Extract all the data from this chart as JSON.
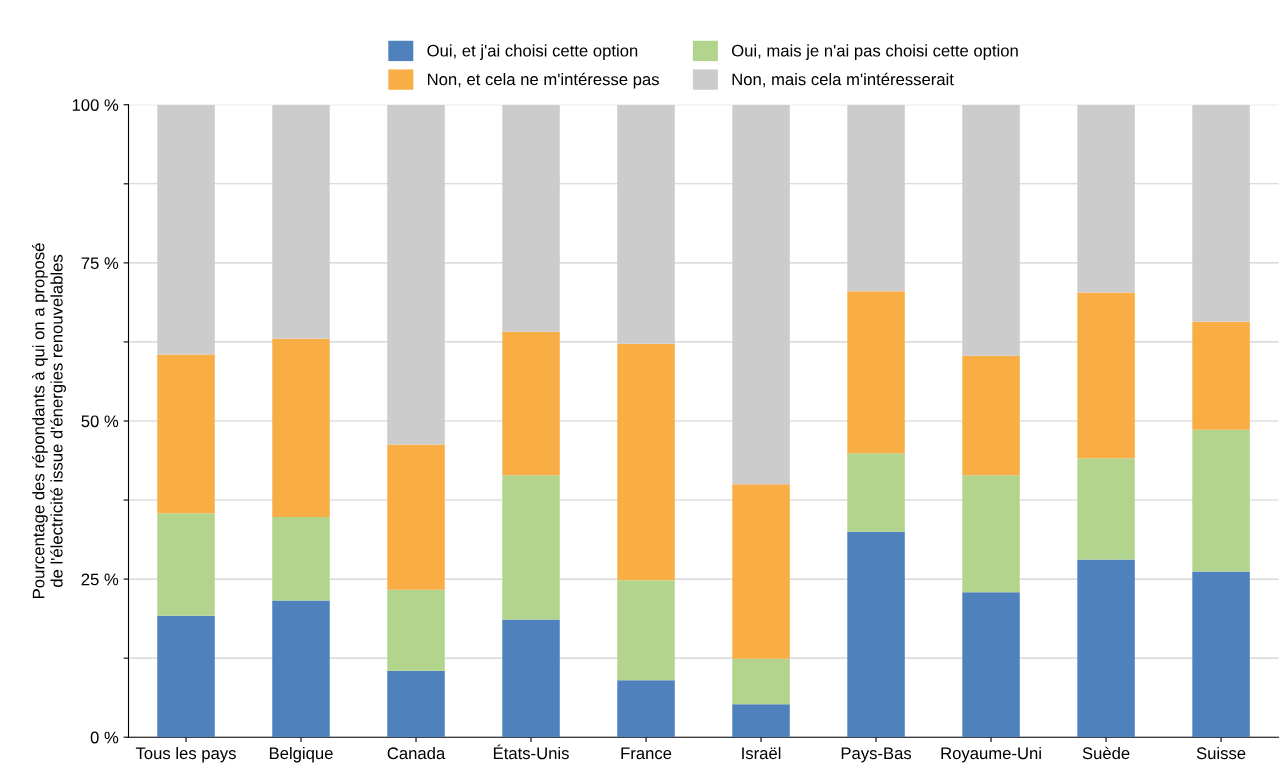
{
  "chart_data": {
    "type": "bar",
    "stacked": true,
    "ylabel": "Pourcentage des répondants à qui on a proposé\nde l'électricité issue d'énergies renouvelables",
    "categories": [
      "Tous les pays",
      "Belgique",
      "Canada",
      "États-Unis",
      "France",
      "Israël",
      "Pays-Bas",
      "Royaume-Uni",
      "Suède",
      "Suisse"
    ],
    "series": [
      {
        "name": "Oui, et j'ai choisi cette option",
        "color": "#4f81bd",
        "values": [
          19.2,
          21.6,
          10.5,
          18.6,
          9.0,
          5.2,
          32.5,
          22.9,
          28.1,
          26.2
        ]
      },
      {
        "name": "Oui, mais je n'ai pas choisi cette option",
        "color": "#b3d48c",
        "values": [
          16.2,
          13.2,
          12.8,
          22.8,
          15.8,
          7.2,
          12.4,
          18.5,
          16.0,
          22.4
        ]
      },
      {
        "name": "Non, et cela ne m'intéresse pas",
        "color": "#f8ae45",
        "values": [
          25.1,
          28.2,
          23.0,
          22.7,
          37.4,
          27.6,
          25.6,
          18.9,
          26.2,
          17.1
        ]
      },
      {
        "name": "Non, mais cela m'intéresserait",
        "color": "#cccccc",
        "values": [
          39.5,
          37.0,
          53.7,
          35.9,
          37.8,
          60.0,
          29.5,
          39.7,
          29.7,
          34.3
        ]
      }
    ],
    "ylim": [
      0,
      100
    ],
    "yticks": [
      {
        "value": 0,
        "label": "0 %"
      },
      {
        "value": 12.5,
        "label": null
      },
      {
        "value": 25,
        "label": "25 %"
      },
      {
        "value": 37.5,
        "label": null
      },
      {
        "value": 50,
        "label": "50 %"
      },
      {
        "value": 62.5,
        "label": null
      },
      {
        "value": 75,
        "label": "75 %"
      },
      {
        "value": 87.5,
        "label": null
      },
      {
        "value": 100,
        "label": "100 %"
      }
    ],
    "grid": "y",
    "legend": "top"
  }
}
